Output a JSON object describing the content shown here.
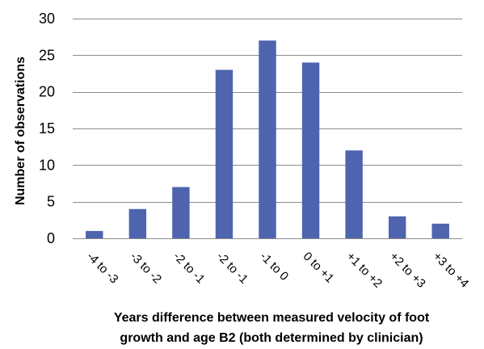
{
  "chart_data": {
    "type": "bar",
    "categories": [
      "-4 to -3",
      "-3 to -2",
      "-2 to -1",
      "-2 to -1",
      "-1 to 0",
      "0 to +1",
      "+1 to +2",
      "+2 to +3",
      "+3 to +4"
    ],
    "values": [
      1,
      4,
      7,
      23,
      27,
      24,
      12,
      3,
      2
    ],
    "title": "",
    "xlabel": "Years difference between measured velocity of foot growth and age B2 (both determined by clinician)",
    "xlabel_lines": [
      "Years difference between measured velocity of foot",
      "growth and age B2 (both determined by clinician)"
    ],
    "ylabel": "Number of observations",
    "ylim": [
      0,
      30
    ],
    "yticks": [
      0,
      5,
      10,
      15,
      20,
      25,
      30
    ],
    "grid": true,
    "legend": false,
    "bar_color": "#4e64ae"
  }
}
